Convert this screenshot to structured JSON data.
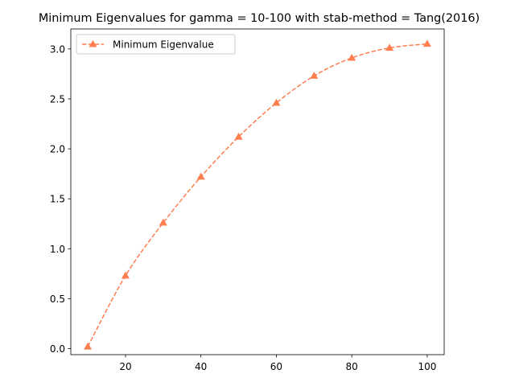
{
  "chart_data": {
    "type": "line",
    "title": "Minimum Eigenvalues for gamma = 10-100 with stab-method = Tang(2016)",
    "xlabel": "",
    "ylabel": "",
    "xlim": [
      5.5,
      104.5
    ],
    "ylim": [
      -0.06,
      3.2
    ],
    "xticks": [
      20,
      40,
      60,
      80,
      100
    ],
    "yticks": [
      0.0,
      0.5,
      1.0,
      1.5,
      2.0,
      2.5,
      3.0
    ],
    "xtick_labels": [
      "20",
      "40",
      "60",
      "80",
      "100"
    ],
    "ytick_labels": [
      "0.0",
      "0.5",
      "1.0",
      "1.5",
      "2.0",
      "2.5",
      "3.0"
    ],
    "grid": false,
    "legend_position": "top-left",
    "series": [
      {
        "name": "Minimum Eigenvalue",
        "color": "#ff7f50",
        "line_style": "dashed",
        "marker": "triangle-up",
        "x": [
          10,
          20,
          30,
          40,
          50,
          60,
          70,
          80,
          90,
          100
        ],
        "y": [
          0.02,
          0.73,
          1.26,
          1.72,
          2.12,
          2.46,
          2.73,
          2.91,
          3.01,
          3.05
        ]
      }
    ]
  }
}
